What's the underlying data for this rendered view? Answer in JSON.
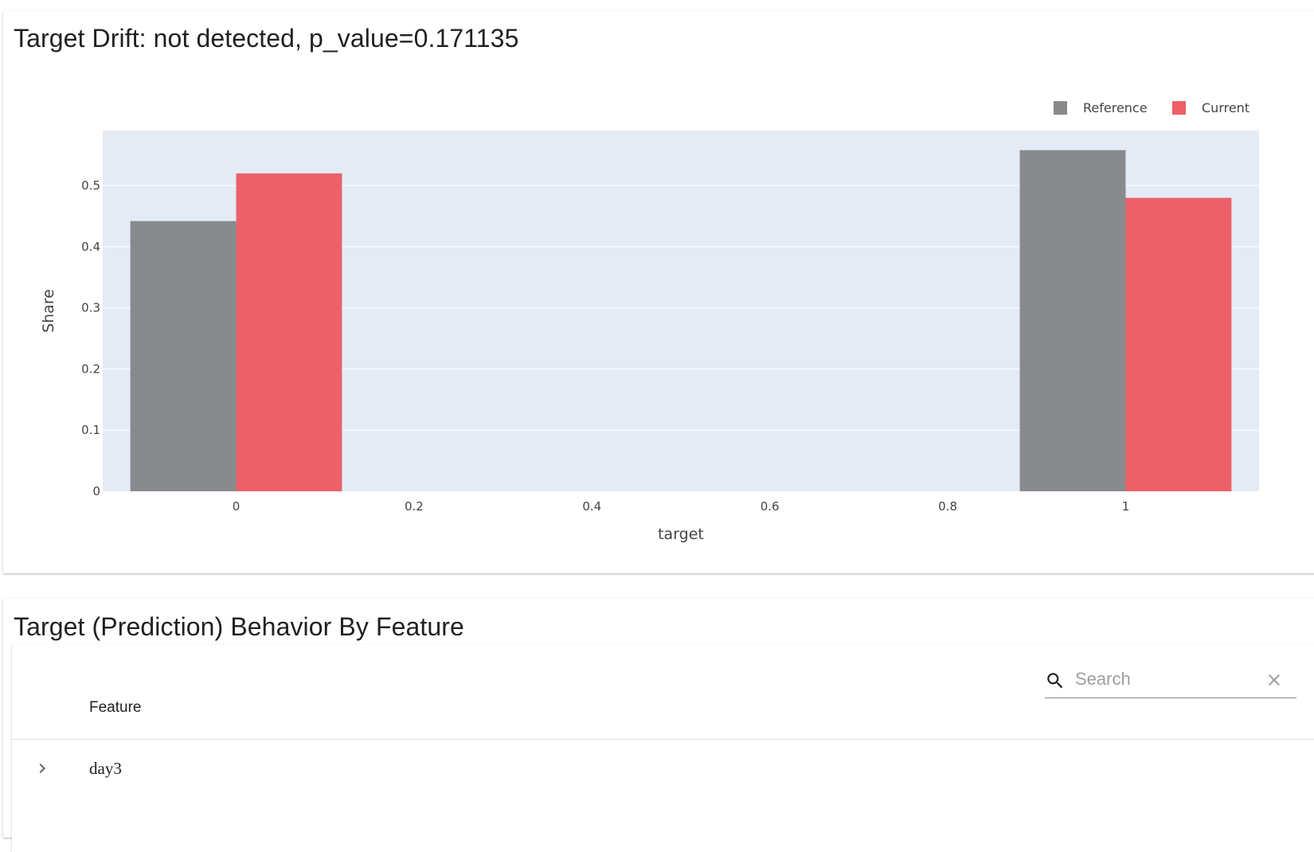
{
  "drift_card": {
    "title": "Target Drift: not detected, p_value=0.171135"
  },
  "behavior_card": {
    "title": "Target (Prediction) Behavior By Feature",
    "search": {
      "placeholder": "Search",
      "value": ""
    },
    "table": {
      "column_header": "Feature",
      "rows": [
        {
          "label": "day3"
        }
      ]
    }
  },
  "colors": {
    "reference": "#888a8e",
    "current": "#ec6069",
    "plot_bg": "#e5ebf5",
    "grid": "#ffffff"
  },
  "chart_data": {
    "type": "bar",
    "title": "",
    "xlabel": "target",
    "ylabel": "Share",
    "x_categories": [
      0,
      1
    ],
    "xlim": [
      -0.15,
      1.15
    ],
    "ylim": [
      0,
      0.59
    ],
    "x_ticks": [
      "0",
      "0.2",
      "0.4",
      "0.6",
      "0.8",
      "1"
    ],
    "x_tick_values": [
      0,
      0.2,
      0.4,
      0.6,
      0.8,
      1
    ],
    "y_ticks": [
      "0",
      "0.1",
      "0.2",
      "0.3",
      "0.4",
      "0.5"
    ],
    "y_tick_values": [
      0,
      0.1,
      0.2,
      0.3,
      0.4,
      0.5
    ],
    "grid": true,
    "legend_position": "top-right",
    "series": [
      {
        "name": "Reference",
        "values": [
          0.442,
          0.558
        ]
      },
      {
        "name": "Current",
        "values": [
          0.52,
          0.48
        ]
      }
    ]
  }
}
